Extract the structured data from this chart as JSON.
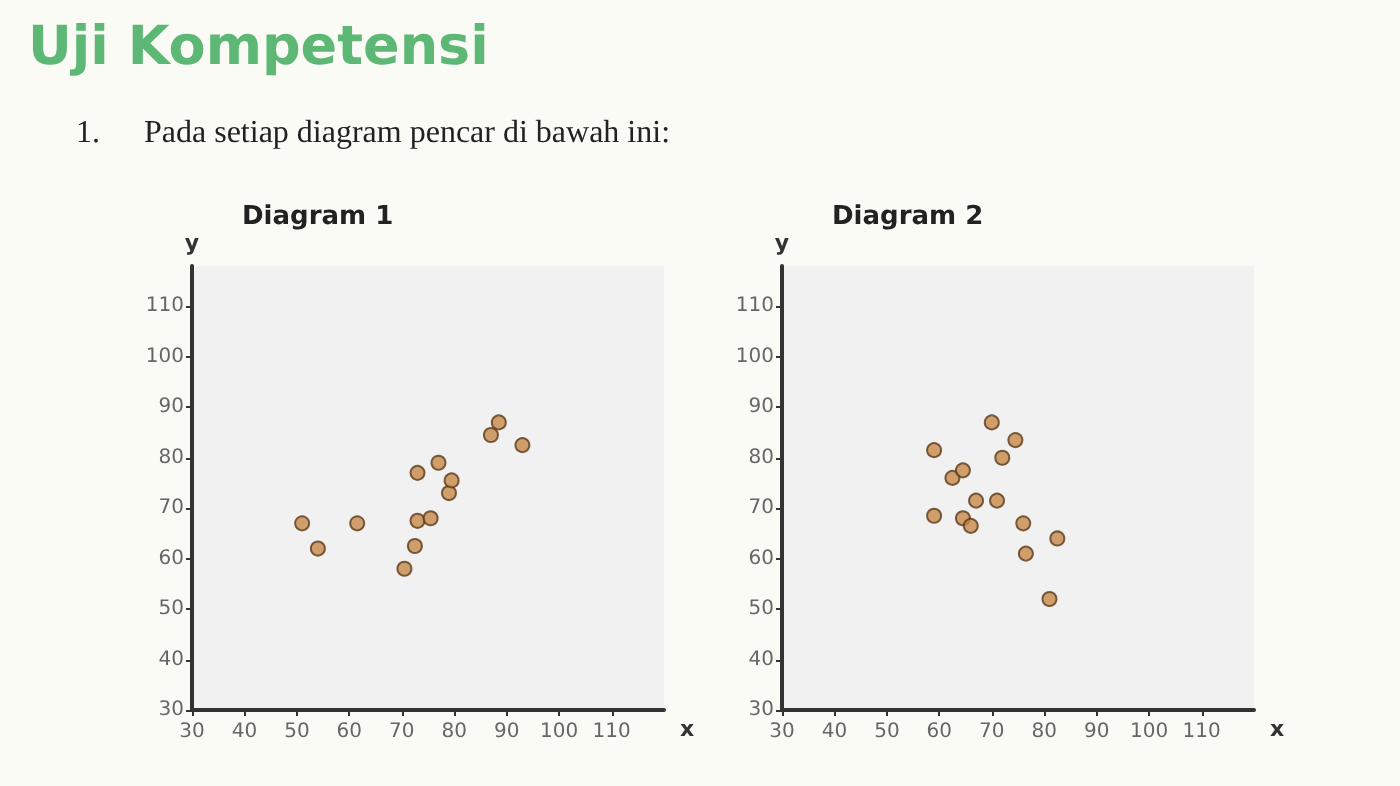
{
  "chart_data": [
    {
      "type": "other",
      "title": "Uji Kompetensi",
      "annotations": [
        "1.\tPada setiap diagram pencar di bawah ini:"
      ]
    },
    {
      "type": "scatter",
      "title": "Diagram 1",
      "xlabel": "x",
      "ylabel": "y",
      "marker": "circle",
      "xlim": [
        30,
        120
      ],
      "ylim": [
        30,
        118
      ],
      "xticks": [
        30,
        40,
        50,
        60,
        70,
        80,
        90,
        100,
        110
      ],
      "yticks": [
        30,
        40,
        50,
        60,
        70,
        80,
        90,
        100,
        110
      ],
      "series": [
        {
          "color": "#c8894a",
          "x": [
            51,
            54,
            61.5,
            70.5,
            72.5,
            73,
            73,
            75.5,
            77,
            79,
            79.5,
            87,
            88.5,
            93
          ],
          "values": [
            67,
            62,
            67,
            58,
            62.5,
            67.5,
            77,
            68,
            79,
            73,
            75.5,
            84.5,
            87,
            82.5
          ]
        }
      ]
    },
    {
      "type": "scatter",
      "title": "Diagram 2",
      "xlabel": "x",
      "ylabel": "y",
      "marker": "circle",
      "xlim": [
        30,
        120
      ],
      "ylim": [
        30,
        118
      ],
      "xticks": [
        30,
        40,
        50,
        60,
        70,
        80,
        90,
        100,
        110
      ],
      "yticks": [
        30,
        40,
        50,
        60,
        70,
        80,
        90,
        100,
        110
      ],
      "series": [
        {
          "color": "#c8894a",
          "x": [
            59,
            59,
            62.5,
            64.5,
            64.5,
            66,
            67,
            70,
            71,
            72,
            74.5,
            76,
            76.5,
            81,
            82.5
          ],
          "values": [
            81.5,
            68.5,
            76,
            77.5,
            68,
            66.5,
            71.5,
            87,
            71.5,
            80,
            83.5,
            67,
            61,
            52,
            64
          ]
        }
      ]
    }
  ]
}
